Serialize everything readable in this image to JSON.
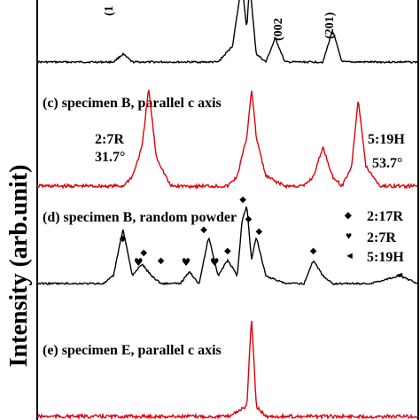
{
  "chart_data": {
    "type": "line",
    "ylabel": "Intensity (arb.unit)",
    "xlim": [
      20,
      60
    ],
    "grid": false,
    "colors": {
      "black": "#000000",
      "red": "#e0000b"
    },
    "panels": [
      {
        "id": "top",
        "label": "",
        "color": "#000000",
        "baseline": 70,
        "x": [
          20,
          25,
          28,
          29,
          30,
          31,
          33,
          35,
          37,
          38,
          39,
          40.5,
          41,
          41.5,
          42,
          42.3,
          42.6,
          43,
          44,
          45,
          46,
          47,
          48,
          49,
          50,
          51,
          52,
          53,
          55,
          57,
          60
        ],
        "y": [
          0,
          0,
          0,
          0.1,
          0,
          0,
          0,
          0,
          0,
          0,
          0,
          0.2,
          0.6,
          1.0,
          0.4,
          1.0,
          0.6,
          0.1,
          0,
          0.3,
          0,
          0,
          0,
          0,
          0,
          0.4,
          0,
          0,
          0,
          0,
          0
        ],
        "peaks": [
          {
            "x": 29,
            "label": "(1"
          },
          {
            "x": 42,
            "label": "(002"
          },
          {
            "x": 51,
            "label": "(201)"
          }
        ]
      },
      {
        "id": "c",
        "label": "(c) specimen B, parallel c axis",
        "color": "#e0000b",
        "baseline": 55,
        "x": [
          20,
          25,
          29,
          30,
          31,
          31.7,
          32.5,
          34,
          38,
          40,
          41,
          42,
          42.5,
          43,
          44,
          46,
          48,
          49,
          50,
          51,
          52,
          53,
          53.7,
          54.5,
          56,
          60
        ],
        "y": [
          0,
          0,
          0,
          0.1,
          0.4,
          1.0,
          0.3,
          0,
          0,
          0,
          0.1,
          0.5,
          1.0,
          0.5,
          0.1,
          0,
          0,
          0.1,
          0.4,
          0.1,
          0,
          0.2,
          0.9,
          0.2,
          0,
          0
        ],
        "annotations": [
          {
            "x": 31.7,
            "label": "2:7R"
          },
          {
            "x": 31.7,
            "label": "31.7°"
          },
          {
            "x": 53.7,
            "label": "5:19H"
          },
          {
            "x": 53.7,
            "label": "53.7°"
          }
        ]
      },
      {
        "id": "d",
        "label": "(d) specimen B, random powder",
        "color": "#000000",
        "baseline": 60,
        "x": [
          20,
          27,
          28,
          29,
          30,
          31,
          32,
          33,
          35,
          36,
          37,
          38,
          39,
          40,
          41,
          41.5,
          42,
          42.5,
          43,
          44,
          46,
          48,
          49,
          50,
          51,
          52,
          55,
          58,
          60
        ],
        "y": [
          0,
          0,
          0.1,
          0.7,
          0.1,
          0.25,
          0.1,
          0,
          0,
          0.15,
          0,
          0.6,
          0.1,
          0.3,
          0.1,
          0.8,
          1.0,
          0.3,
          0.6,
          0.1,
          0,
          0,
          0.3,
          0.1,
          0,
          0,
          0,
          0.1,
          0
        ],
        "legend": [
          {
            "symbol": "diamond",
            "label": "2:17R"
          },
          {
            "symbol": "heart",
            "label": "2:7R"
          },
          {
            "symbol": "triangle",
            "label": "5:19H"
          }
        ]
      },
      {
        "id": "e",
        "label": "(e) specimen E, parallel c axis",
        "color": "#e0000b",
        "baseline": 5,
        "x": [
          20,
          30,
          40,
          42,
          42.5,
          43,
          44,
          50,
          60
        ],
        "y": [
          0,
          0,
          0,
          0.1,
          1.0,
          0.1,
          0,
          0,
          0
        ]
      }
    ]
  },
  "markers": {
    "diamond": "◆",
    "heart": "♥",
    "triangle": "◄"
  }
}
